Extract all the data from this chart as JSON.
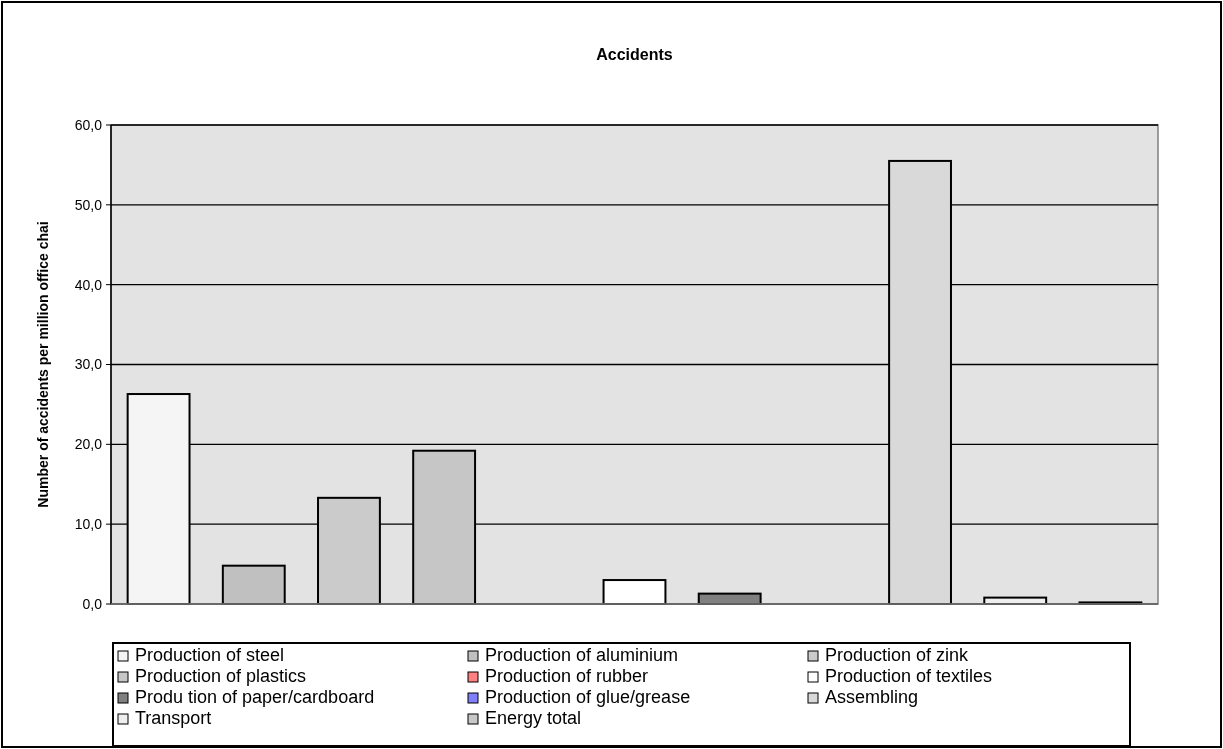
{
  "chart_data": {
    "type": "bar",
    "title": "Accidents",
    "ylabel": "Number of accidents per million office chai",
    "categories": [
      null,
      null,
      null,
      null,
      null,
      null,
      null,
      null,
      null,
      null,
      null
    ],
    "stacked": true,
    "series": [
      {
        "name": "Production of steel",
        "color": "#f5f5f5",
        "values": [
          26.3,
          null,
          null,
          null,
          null,
          null,
          null,
          null,
          null,
          null,
          null
        ]
      },
      {
        "name": "Production of aluminium",
        "color": "#c0c0c0",
        "values": [
          null,
          4.8,
          null,
          null,
          null,
          null,
          null,
          null,
          null,
          null,
          null
        ]
      },
      {
        "name": "Production of zink",
        "color": "#cbcbcb",
        "values": [
          null,
          null,
          13.3,
          null,
          null,
          null,
          null,
          null,
          null,
          null,
          null
        ]
      },
      {
        "name": "Production of plastics",
        "color": "#c6c6c6",
        "values": [
          null,
          null,
          null,
          19.2,
          null,
          null,
          null,
          null,
          null,
          null,
          null
        ]
      },
      {
        "name": "Production of rubber",
        "color": "#ff8080",
        "values": [
          null,
          null,
          null,
          null,
          0,
          null,
          null,
          null,
          null,
          null,
          null
        ]
      },
      {
        "name": "Production of textiles",
        "color": "#ffffff",
        "values": [
          null,
          null,
          null,
          null,
          null,
          3.0,
          null,
          null,
          null,
          null,
          null
        ]
      },
      {
        "name": "Produ tion of paper/cardboard",
        "color": "#808080",
        "values": [
          null,
          null,
          null,
          null,
          null,
          null,
          1.3,
          null,
          null,
          null,
          null
        ]
      },
      {
        "name": "Production of glue/grease",
        "color": "#8080ff",
        "values": [
          null,
          null,
          null,
          null,
          null,
          null,
          null,
          null,
          null,
          null,
          null
        ]
      },
      {
        "name": "Assembling",
        "color": "#d9d9d9",
        "values": [
          null,
          null,
          null,
          null,
          null,
          null,
          null,
          null,
          55.5,
          null,
          null
        ]
      },
      {
        "name": "Transport",
        "color": "#eeeeee",
        "values": [
          null,
          null,
          null,
          null,
          null,
          null,
          null,
          null,
          null,
          0.8,
          null
        ]
      },
      {
        "name": "Energy total",
        "color": "#c8c8c8",
        "values": [
          null,
          null,
          null,
          null,
          null,
          null,
          null,
          null,
          null,
          null,
          0.2
        ]
      }
    ],
    "ylim": [
      0,
      60
    ],
    "yticks": [
      {
        "value": 0,
        "label": "0,0"
      },
      {
        "value": 10,
        "label": "10,0"
      },
      {
        "value": 20,
        "label": "20,0"
      },
      {
        "value": 30,
        "label": "30,0"
      },
      {
        "value": 40,
        "label": "40,0"
      },
      {
        "value": 50,
        "label": "50,0"
      },
      {
        "value": 60,
        "label": "60,0"
      }
    ],
    "grid": "y",
    "legend": "bottom",
    "tick_labels": "y"
  }
}
